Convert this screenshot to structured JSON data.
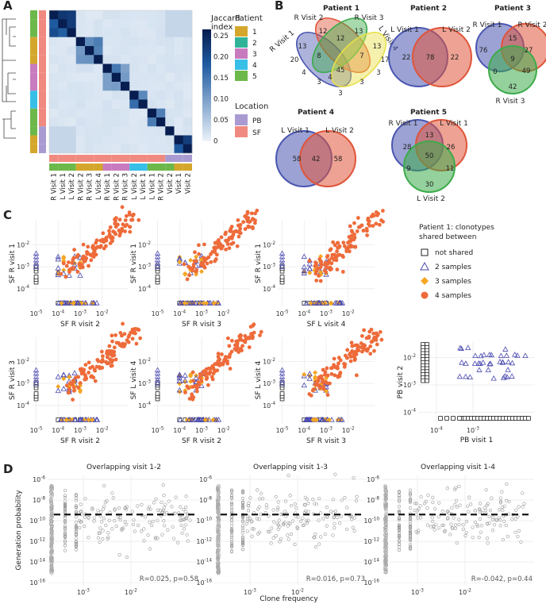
{
  "panel_letters": [
    "A",
    "B",
    "C",
    "D"
  ],
  "chart_data": [
    {
      "id": "A",
      "type": "heatmap",
      "legend_title": "Jaccard index",
      "colorbar_ticks": [
        "0.25",
        "0.20",
        "0.15",
        "0.10",
        "0.05",
        "0"
      ],
      "patient_title": "Patient",
      "patients": [
        {
          "label": "1",
          "color": "#d4a72c"
        },
        {
          "label": "2",
          "color": "#2fb49a"
        },
        {
          "label": "3",
          "color": "#c97bbf"
        },
        {
          "label": "4",
          "color": "#38bfe8"
        },
        {
          "label": "5",
          "color": "#6cb84a"
        }
      ],
      "location_title": "Location",
      "locations": [
        {
          "label": "PB",
          "color": "#a99bd2"
        },
        {
          "label": "SF",
          "color": "#f08a80"
        }
      ],
      "samples": [
        "R Visit 1",
        "L Visit 1",
        "L Visit 2",
        "R Visit 2",
        "R Visit 3",
        "L Visit 4",
        "R Visit 1",
        "R Visit 2",
        "R Visit 3",
        "L Visit 2",
        "L Visit 1",
        "L Visit 1",
        "R Visit 2",
        "Visit 2",
        "Visit 1",
        "Visit 2"
      ],
      "sample_patient": [
        4,
        4,
        4,
        0,
        0,
        0,
        2,
        2,
        2,
        3,
        3,
        4,
        4,
        4,
        0,
        0
      ],
      "sample_location": [
        1,
        1,
        1,
        1,
        1,
        1,
        1,
        1,
        1,
        1,
        1,
        1,
        1,
        0,
        0,
        0
      ],
      "blocks": [
        [
          0,
          2,
          0.27
        ],
        [
          3,
          5,
          0.17
        ],
        [
          6,
          8,
          0.17
        ],
        [
          9,
          10,
          0.22
        ],
        [
          11,
          12,
          0.17
        ],
        [
          13,
          13,
          0.3
        ],
        [
          14,
          15,
          0.28
        ]
      ],
      "background": 0.015
    },
    {
      "id": "B",
      "type": "venn",
      "diagrams": [
        {
          "title": "Patient 1",
          "set_labels": [
            "R Visit 1",
            "R Visit 2",
            "R Visit 3",
            "L Visit 4"
          ],
          "counts": [
            "20",
            "12",
            "13",
            "17",
            "13",
            "12",
            "13",
            "4",
            "8",
            "7",
            "45",
            "3",
            "3",
            "3",
            "3",
            "4"
          ]
        },
        {
          "title": "Patient 2",
          "set_labels": [
            "L Visit 1",
            "L Visit 2"
          ],
          "counts": [
            "22",
            "78",
            "22"
          ]
        },
        {
          "title": "Patient 3",
          "set_labels": [
            "R Visit 1",
            "R Visit 2",
            "R Visit 3"
          ],
          "counts": [
            "76",
            "15",
            "27",
            "0",
            "9",
            "49",
            "42"
          ]
        },
        {
          "title": "Patient 4",
          "set_labels": [
            "L Visit 1",
            "L Visit 2"
          ],
          "counts": [
            "58",
            "42",
            "58"
          ]
        },
        {
          "title": "Patient 5",
          "set_labels": [
            "R Visit 1",
            "L Visit 1",
            "L Visit 2"
          ],
          "counts": [
            "28",
            "13",
            "26",
            "9",
            "50",
            "11",
            "30"
          ]
        }
      ],
      "set_colors": [
        "#4a56b0",
        "#e0553a",
        "#3cab4a",
        "#e8e04a"
      ]
    },
    {
      "id": "C",
      "type": "scatter",
      "legend_title": [
        "Patient 1: clonotypes",
        "shared between"
      ],
      "legend_items": [
        {
          "label": "not shared",
          "marker": "square",
          "color": "#222222"
        },
        {
          "label": "2 samples",
          "marker": "triangle",
          "color": "#4a4ab0"
        },
        {
          "label": "3 samples",
          "marker": "diamond",
          "color": "#f5a623"
        },
        {
          "label": "4 samples",
          "marker": "circle",
          "color": "#ee6b3a"
        }
      ],
      "x_tick_exponents": [
        -5,
        -4,
        -3,
        -2
      ],
      "y_tick_exponents": [
        -4,
        -3,
        -2
      ],
      "pb_x_tick_exponents": [
        -4,
        -3
      ],
      "pb_y_tick_exponents": [
        -4,
        -3,
        -2
      ],
      "plots": [
        {
          "xlabel": "SF R visit 2",
          "ylabel": "SF R visit 1"
        },
        {
          "xlabel": "SF R visit 3",
          "ylabel": "SF R visit 1"
        },
        {
          "xlabel": "SF L visit 4",
          "ylabel": "SF R visit 1"
        },
        {
          "xlabel": "SF R visit 2",
          "ylabel": "SF R visit 3"
        },
        {
          "xlabel": "SF R visit 2",
          "ylabel": "SF L visit 4"
        },
        {
          "xlabel": "SF R visit 3",
          "ylabel": "SF L visit 4"
        },
        {
          "xlabel": "PB visit 1",
          "ylabel": "PB visit 2"
        }
      ]
    },
    {
      "id": "D",
      "type": "scatter",
      "ylabel": "Generation probability",
      "xlabel": "Clone frequency",
      "y_tick_exponents": [
        -6,
        -8,
        -10,
        -12,
        -14,
        -16
      ],
      "x_tick_exponents": [
        -3,
        -2
      ],
      "plots": [
        {
          "title": "Overlapping visit 1-2",
          "stat": "R=0.025, p=0.58"
        },
        {
          "title": "Overlapping visit 1-3",
          "stat": "R=0.016, p=0.73"
        },
        {
          "title": "Overlapping visit 1-4",
          "stat": "R=-0.042, p=0.44"
        }
      ]
    }
  ]
}
